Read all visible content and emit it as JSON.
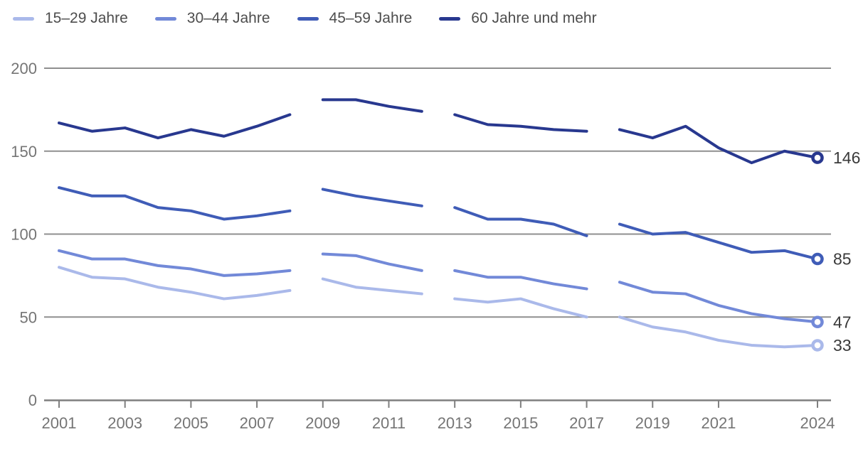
{
  "chart_data": {
    "type": "line",
    "title": "",
    "xlabel": "",
    "ylabel": "",
    "x": [
      2001,
      2002,
      2003,
      2004,
      2005,
      2006,
      2007,
      2008,
      2009,
      2010,
      2011,
      2012,
      2013,
      2014,
      2015,
      2016,
      2017,
      2018,
      2019,
      2020,
      2021,
      2022,
      2023,
      2024
    ],
    "x_tick_years": [
      2001,
      2003,
      2005,
      2007,
      2009,
      2011,
      2013,
      2015,
      2017,
      2019,
      2021,
      2024
    ],
    "x_tick_labels": [
      "2001",
      "2003",
      "2005",
      "2007",
      "2009",
      "2011",
      "2013",
      "2015",
      "2017",
      "2019",
      "2021",
      "2024"
    ],
    "yticks": [
      0,
      50,
      100,
      150,
      200
    ],
    "ylim": [
      0,
      200
    ],
    "grid": true,
    "legend_position": "top",
    "breaks_after": [
      2008,
      2012,
      2017
    ],
    "series": [
      {
        "name": "15–29 Jahre",
        "color": "#aab9ea",
        "end_label": "33",
        "values": [
          80,
          74,
          73,
          68,
          65,
          61,
          63,
          66,
          73,
          68,
          66,
          64,
          61,
          59,
          61,
          55,
          50,
          50,
          44,
          41,
          36,
          33,
          32,
          33
        ]
      },
      {
        "name": "30–44 Jahre",
        "color": "#7289d8",
        "end_label": "47",
        "values": [
          90,
          85,
          85,
          81,
          79,
          75,
          76,
          78,
          88,
          87,
          82,
          78,
          78,
          74,
          74,
          70,
          67,
          71,
          65,
          64,
          57,
          52,
          49,
          47
        ]
      },
      {
        "name": "45–59 Jahre",
        "color": "#3f5cb7",
        "end_label": "85",
        "values": [
          128,
          123,
          123,
          116,
          114,
          109,
          111,
          114,
          127,
          123,
          120,
          117,
          116,
          109,
          109,
          106,
          99,
          106,
          100,
          101,
          95,
          89,
          90,
          85
        ]
      },
      {
        "name": "60 Jahre und mehr",
        "color": "#28388f",
        "end_label": "146",
        "values": [
          167,
          162,
          164,
          158,
          163,
          159,
          165,
          172,
          181,
          181,
          177,
          174,
          172,
          166,
          165,
          163,
          162,
          163,
          158,
          165,
          152,
          143,
          150,
          146
        ]
      }
    ],
    "colors": {
      "gridline": "#8f8f8f",
      "axis": "#7f7f7f",
      "tick_text": "#757575",
      "end_label_text": "#3a3a3a",
      "legend_text": "#4d4d4d",
      "marker_fill": "#ffffff"
    }
  }
}
